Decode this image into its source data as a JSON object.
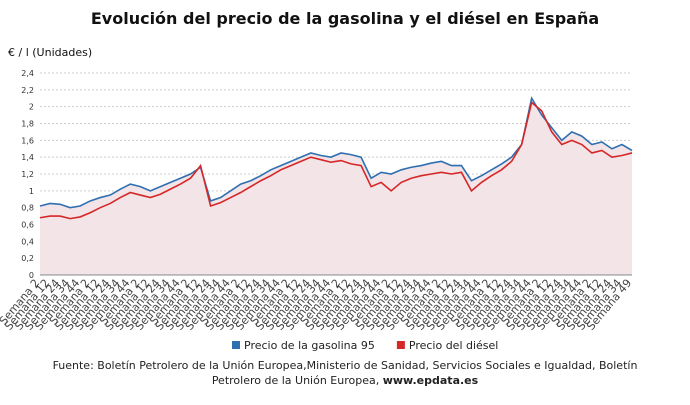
{
  "chart_data": {
    "type": "line",
    "title": "Evolución del precio de la gasolina y el diésel en España",
    "y_label": "€ / l (Unidades)",
    "categories": [
      "Semana 2",
      "Semana 12",
      "Semana 24",
      "Semana 34",
      "Semana 44",
      "Semana 2",
      "Semana 12",
      "Semana 24",
      "Semana 34",
      "Semana 44",
      "Semana 2",
      "Semana 12",
      "Semana 24",
      "Semana 34",
      "Semana 44",
      "Semana 2",
      "Semana 12",
      "Semana 24",
      "Semana 34",
      "Semana 44",
      "Semana 2",
      "Semana 12",
      "Semana 24",
      "Semana 34",
      "Semana 44",
      "Semana 2",
      "Semana 12",
      "Semana 24",
      "Semana 34",
      "Semana 44",
      "Semana 2",
      "Semana 12",
      "Semana 24",
      "Semana 34",
      "Semana 44",
      "Semana 2",
      "Semana 12",
      "Semana 24",
      "Semana 34",
      "Semana 44",
      "Semana 2",
      "Semana 12",
      "Semana 24",
      "Semana 34",
      "Semana 44",
      "Semana 2",
      "Semana 12",
      "Semana 24",
      "Semana 34",
      "Semana 44",
      "Semana 2",
      "Semana 12",
      "Semana 24",
      "Semana 34",
      "Semana 44",
      "Semana 2",
      "Semana 12",
      "Semana 24",
      "Semana 34",
      "Semana 49"
    ],
    "series": [
      {
        "name": "Precio de la gasolina 95",
        "color": "#2f6fb0",
        "values": [
          0.82,
          0.85,
          0.84,
          0.8,
          0.82,
          0.88,
          0.92,
          0.95,
          1.02,
          1.08,
          1.05,
          1.0,
          1.05,
          1.1,
          1.15,
          1.2,
          1.28,
          0.88,
          0.92,
          1.0,
          1.08,
          1.12,
          1.18,
          1.25,
          1.3,
          1.35,
          1.4,
          1.45,
          1.42,
          1.4,
          1.45,
          1.43,
          1.4,
          1.15,
          1.22,
          1.2,
          1.25,
          1.28,
          1.3,
          1.33,
          1.35,
          1.3,
          1.3,
          1.12,
          1.18,
          1.25,
          1.32,
          1.4,
          1.55,
          2.1,
          1.9,
          1.75,
          1.6,
          1.7,
          1.65,
          1.55,
          1.58,
          1.5,
          1.55,
          1.48
        ]
      },
      {
        "name": "Precio del diésel",
        "color": "#d62728",
        "values": [
          0.68,
          0.7,
          0.7,
          0.67,
          0.69,
          0.74,
          0.8,
          0.85,
          0.92,
          0.98,
          0.95,
          0.92,
          0.96,
          1.02,
          1.08,
          1.15,
          1.3,
          0.82,
          0.86,
          0.92,
          0.98,
          1.05,
          1.12,
          1.18,
          1.25,
          1.3,
          1.35,
          1.4,
          1.37,
          1.34,
          1.36,
          1.32,
          1.3,
          1.05,
          1.1,
          1.0,
          1.1,
          1.15,
          1.18,
          1.2,
          1.22,
          1.2,
          1.22,
          1.0,
          1.1,
          1.18,
          1.25,
          1.35,
          1.55,
          2.05,
          1.95,
          1.7,
          1.55,
          1.6,
          1.55,
          1.45,
          1.48,
          1.4,
          1.42,
          1.45
        ]
      }
    ],
    "ylim": [
      0,
      2.4
    ],
    "yticks": [
      0,
      {
        "value": 0.2,
        "label": "0,2"
      },
      {
        "value": 0.4,
        "label": "0,4"
      },
      {
        "value": 0.6,
        "label": "0,6"
      },
      {
        "value": 0.8,
        "label": "0,8"
      },
      1,
      {
        "value": 1.2,
        "label": "1,2"
      },
      {
        "value": 1.4,
        "label": "1,4"
      },
      {
        "value": 1.6,
        "label": "1,6"
      },
      {
        "value": 1.8,
        "label": "1,8"
      },
      2,
      {
        "value": 2.2,
        "label": "2,2"
      },
      {
        "value": 2.4,
        "label": "2,4"
      }
    ],
    "grid": true,
    "area_fill": "#f2e4e7",
    "source": "Fuente: Boletín Petrolero de la Unión Europea,Ministerio de Sanidad, Servicios Sociales e Igualdad, Boletín Petrolero de la Unión Europea,",
    "source_link": "www.epdata.es"
  }
}
